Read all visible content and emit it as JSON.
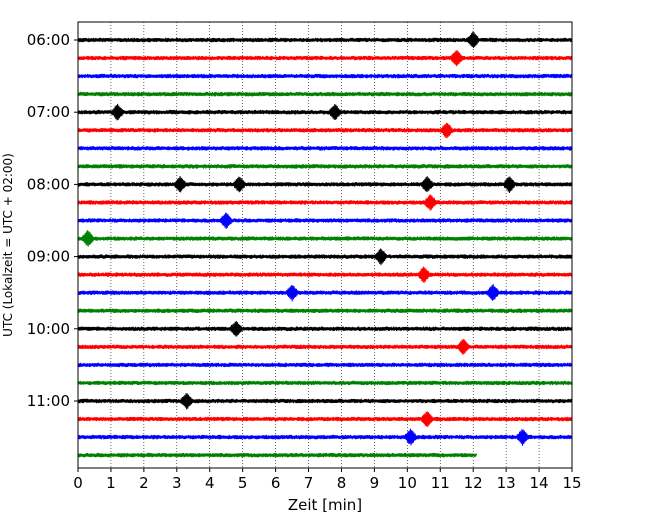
{
  "chart_data": {
    "type": "line",
    "title": "",
    "xlabel": "Zeit  [min]",
    "ylabel": "UTC (Lokalzeit = UTC + 02:00)",
    "xlim": [
      0,
      15
    ],
    "x_ticks": [
      "0",
      "1",
      "2",
      "3",
      "4",
      "5",
      "6",
      "7",
      "8",
      "9",
      "10",
      "11",
      "12",
      "13",
      "14",
      "15"
    ],
    "y_ticks": [
      "06:00",
      "07:00",
      "08:00",
      "09:00",
      "10:00",
      "11:00"
    ],
    "trace_interval_min": 15,
    "grid": "vertical-dotted",
    "legend": "none",
    "line_colors": [
      "#000000",
      "#ff0000",
      "#0000ff",
      "#008000"
    ],
    "traces": [
      {
        "start": "06:00",
        "end_min": 15,
        "events": [
          12.0
        ]
      },
      {
        "start": "06:15",
        "end_min": 15,
        "events": [
          11.5
        ]
      },
      {
        "start": "06:30",
        "end_min": 15,
        "events": []
      },
      {
        "start": "06:45",
        "end_min": 15,
        "events": []
      },
      {
        "start": "07:00",
        "end_min": 15,
        "events": [
          1.2,
          7.8
        ]
      },
      {
        "start": "07:15",
        "end_min": 15,
        "events": [
          11.2
        ]
      },
      {
        "start": "07:30",
        "end_min": 15,
        "events": []
      },
      {
        "start": "07:45",
        "end_min": 15,
        "events": []
      },
      {
        "start": "08:00",
        "end_min": 15,
        "events": [
          3.1,
          4.9,
          10.6,
          13.1
        ]
      },
      {
        "start": "08:15",
        "end_min": 15,
        "events": [
          10.7
        ]
      },
      {
        "start": "08:30",
        "end_min": 15,
        "events": [
          4.5
        ]
      },
      {
        "start": "08:45",
        "end_min": 15,
        "events": [
          0.3
        ]
      },
      {
        "start": "09:00",
        "end_min": 15,
        "events": [
          9.2
        ]
      },
      {
        "start": "09:15",
        "end_min": 15,
        "events": [
          10.5
        ]
      },
      {
        "start": "09:30",
        "end_min": 15,
        "events": [
          6.5,
          12.6
        ]
      },
      {
        "start": "09:45",
        "end_min": 15,
        "events": []
      },
      {
        "start": "10:00",
        "end_min": 15,
        "events": [
          4.8
        ]
      },
      {
        "start": "10:15",
        "end_min": 15,
        "events": [
          11.7
        ]
      },
      {
        "start": "10:30",
        "end_min": 15,
        "events": []
      },
      {
        "start": "10:45",
        "end_min": 15,
        "events": []
      },
      {
        "start": "11:00",
        "end_min": 15,
        "events": [
          3.3
        ]
      },
      {
        "start": "11:15",
        "end_min": 15,
        "events": [
          10.6
        ]
      },
      {
        "start": "11:30",
        "end_min": 15,
        "events": [
          10.1,
          13.5
        ]
      },
      {
        "start": "11:45",
        "end_min": 12.1,
        "events": []
      }
    ]
  }
}
